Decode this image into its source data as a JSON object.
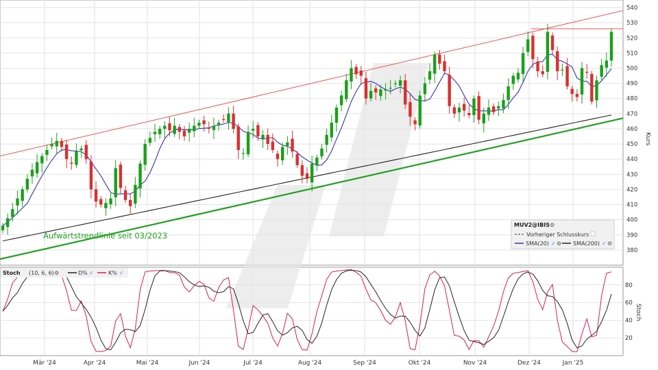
{
  "chart_data": [
    {
      "type": "candlestick",
      "symbol": "MUV2@IBIS",
      "ylabel": "Kurs",
      "ylim": [
        370,
        545
      ],
      "yticks": [
        380,
        390,
        400,
        410,
        420,
        430,
        440,
        450,
        460,
        470,
        480,
        490,
        500,
        510,
        520,
        530,
        540
      ],
      "x_months": [
        "Mär '24",
        "Apr '24",
        "Mai '24",
        "Jun '24",
        "Jul '24",
        "Aug '24",
        "Sep '24",
        "Okt '24",
        "Nov '24",
        "Dez '24",
        "Jan '25"
      ],
      "grid": true,
      "price": [
        396,
        401,
        407,
        414,
        420,
        427,
        433,
        438,
        442,
        446,
        450,
        452,
        448,
        440,
        437,
        445,
        447,
        440,
        420,
        412,
        410,
        411,
        414,
        434,
        421,
        413,
        409,
        423,
        437,
        450,
        454,
        458,
        460,
        462,
        459,
        462,
        458,
        455,
        460,
        462,
        464,
        463,
        460,
        462,
        464,
        466,
        470,
        460,
        446,
        444,
        458,
        460,
        455,
        456,
        450,
        446,
        440,
        448,
        451,
        445,
        436,
        429,
        427,
        437,
        441,
        447,
        456,
        464,
        474,
        482,
        492,
        500,
        496,
        495,
        480,
        485,
        484,
        486,
        486,
        487,
        490,
        492,
        476,
        468,
        463,
        482,
        490,
        498,
        509,
        503,
        498,
        475,
        470,
        474,
        472,
        469,
        480,
        466,
        470,
        474,
        471,
        475,
        479,
        488,
        495,
        497,
        510,
        519,
        506,
        498,
        496,
        524,
        512,
        498,
        499,
        488,
        483,
        481,
        500,
        497,
        478,
        492,
        502,
        505,
        524
      ],
      "series": [
        {
          "name": "SMA(20)",
          "color": "#3333b3"
        },
        {
          "name": "SMA(200)",
          "color": "#222222"
        }
      ],
      "legend": {
        "title": "MUV2@IBIS",
        "items": [
          "Vorheriger Schlusskurs",
          "SMA(20)",
          "SMA(200)"
        ],
        "position": "bottom-right"
      },
      "lines": {
        "resistance_level": 526,
        "upper_channel": {
          "from": 442,
          "to": 538
        },
        "trendline": {
          "from": 374,
          "to": 467,
          "label": "Aufwärtstrendlinie seit 03/2023",
          "color": "#21a021"
        }
      },
      "colors": {
        "up": "#1aa01a",
        "down": "#d93030",
        "channel": "#e85555"
      }
    },
    {
      "type": "line",
      "title": "Stoch",
      "params": "(10, 6, 6)",
      "ylabel": "Stoch",
      "ylim": [
        0,
        100
      ],
      "yticks": [
        20,
        40,
        60,
        80
      ],
      "series": [
        {
          "name": "D%",
          "color": "#222222"
        },
        {
          "name": "K%",
          "color": "#d61e52"
        }
      ]
    }
  ]
}
